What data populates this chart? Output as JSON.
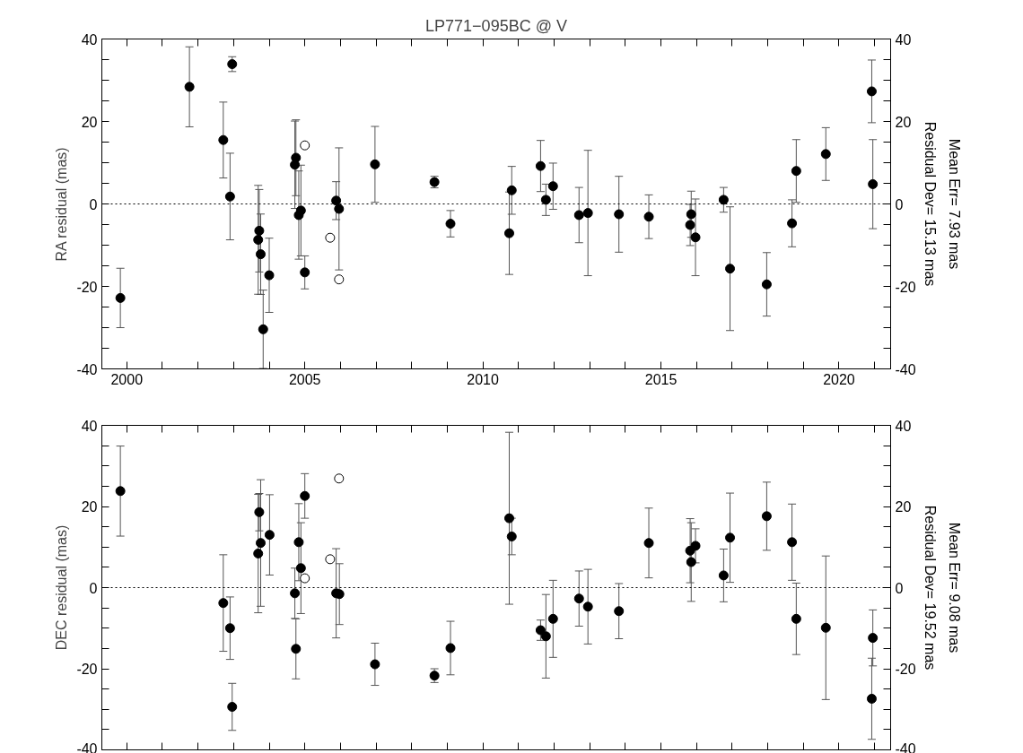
{
  "chart_data": [
    {
      "type": "scatter",
      "title": "LP771−095BC @ V",
      "ylabel": "RA residual (mas)",
      "annotations": [
        "Residual Dev= 15.13 mas",
        "Mean Err= 7.93 mas"
      ],
      "xlim": [
        1999.3,
        2021.45
      ],
      "ylim": [
        -40,
        40
      ],
      "y2lim": [
        -40,
        40
      ],
      "xticks": [
        2000,
        {
          "value": 2001,
          "label": null
        },
        {
          "value": 2002,
          "label": null
        },
        {
          "value": 2003,
          "label": null
        },
        {
          "value": 2004,
          "label": null
        },
        2005,
        {
          "value": 2006,
          "label": null
        },
        {
          "value": 2007,
          "label": null
        },
        {
          "value": 2008,
          "label": null
        },
        {
          "value": 2009,
          "label": null
        },
        2010,
        {
          "value": 2011,
          "label": null
        },
        {
          "value": 2012,
          "label": null
        },
        {
          "value": 2013,
          "label": null
        },
        {
          "value": 2014,
          "label": null
        },
        2015,
        {
          "value": 2016,
          "label": null
        },
        {
          "value": 2017,
          "label": null
        },
        {
          "value": 2018,
          "label": null
        },
        {
          "value": 2019,
          "label": null
        },
        2020,
        {
          "value": 2021,
          "label": null
        }
      ],
      "yticks": [
        -40,
        {
          "value": -35,
          "label": null
        },
        {
          "value": -30,
          "label": null
        },
        {
          "value": -25,
          "label": null
        },
        -20,
        {
          "value": -15,
          "label": null
        },
        {
          "value": -10,
          "label": null
        },
        {
          "value": -5,
          "label": null
        },
        0,
        {
          "value": 5,
          "label": null
        },
        {
          "value": 10,
          "label": null
        },
        {
          "value": 15,
          "label": null
        },
        20,
        {
          "value": 25,
          "label": null
        },
        {
          "value": 30,
          "label": null
        },
        {
          "value": 35,
          "label": null
        },
        40
      ],
      "y2ticks": [
        -40,
        {
          "value": -35,
          "label": null
        },
        {
          "value": -30,
          "label": null
        },
        {
          "value": -25,
          "label": null
        },
        -20,
        {
          "value": -15,
          "label": null
        },
        {
          "value": -10,
          "label": null
        },
        {
          "value": -5,
          "label": null
        },
        0,
        {
          "value": 5,
          "label": null
        },
        {
          "value": 10,
          "label": null
        },
        {
          "value": 15,
          "label": null
        },
        20,
        {
          "value": 25,
          "label": null
        },
        {
          "value": 30,
          "label": null
        },
        {
          "value": 35,
          "label": null
        },
        40
      ],
      "ref_lines": [
        {
          "axis": "y",
          "value": 0,
          "line_style": "dotted"
        }
      ],
      "marker": "circle",
      "series": [
        {
          "color": "#000000",
          "x": [
            1999.82,
            2001.76,
            2002.96,
            2002.71,
            2002.9,
            2003.72,
            2003.69,
            2003.76,
            2003.83,
            2004.0,
            2004.75,
            2004.72,
            2004.89,
            2004.83,
            2005.0,
            2005.88,
            2005.96,
            2006.97,
            2008.64,
            2009.09,
            2010.81,
            2010.74,
            2011.62,
            2011.77,
            2011.97,
            2012.7,
            2012.95,
            2013.82,
            2014.66,
            2015.85,
            2015.82,
            2015.97,
            2016.76,
            2016.94,
            2017.97,
            2018.68,
            2018.8,
            2019.63,
            2020.92,
            2020.95
          ],
          "values": [
            -22.8,
            28.4,
            33.9,
            15.5,
            1.8,
            -6.5,
            -8.7,
            -12.2,
            -30.4,
            -17.3,
            11.2,
            9.5,
            -1.6,
            -2.7,
            -16.6,
            0.8,
            -1.2,
            9.6,
            5.3,
            -4.8,
            3.3,
            -7.1,
            9.2,
            1.0,
            4.3,
            -2.7,
            -2.2,
            -2.5,
            -3.1,
            -2.5,
            -5.1,
            -8.1,
            1.0,
            -15.7,
            -19.5,
            -4.7,
            8.0,
            12.1,
            27.3,
            4.8
          ],
          "errors": [
            7.2,
            9.7,
            1.8,
            9.2,
            10.5,
            10,
            13.2,
            9.75,
            9.5,
            9,
            9.2,
            10.6,
            11,
            10.7,
            4,
            4.6,
            14.8,
            9.2,
            1.4,
            3.2,
            5.8,
            10,
            6.2,
            3.8,
            5.6,
            6.7,
            15.2,
            9.2,
            5.3,
            5.6,
            5,
            9.3,
            3,
            15,
            7.7,
            5.7,
            7.6,
            6.4,
            7.6,
            10.8
          ]
        },
        {
          "color": "#ffffff",
          "x": [
            2005.0,
            2005.71,
            2005.96
          ],
          "values": [
            14.2,
            -8.2,
            -18.3
          ]
        }
      ]
    },
    {
      "type": "scatter",
      "ylabel": "DEC residual (mas)",
      "annotations": [
        "Residual Dev= 19.52 mas",
        "Mean Err= 9.08 mas"
      ],
      "xlim": [
        1999.3,
        2021.45
      ],
      "ylim": [
        -40,
        40
      ],
      "y2lim": [
        -40,
        40
      ],
      "tick_labels": "y",
      "xticks": [
        {
          "value": 2000,
          "label": null
        },
        {
          "value": 2001,
          "label": null
        },
        {
          "value": 2002,
          "label": null
        },
        {
          "value": 2003,
          "label": null
        },
        {
          "value": 2004,
          "label": null
        },
        {
          "value": 2005,
          "label": null
        },
        {
          "value": 2006,
          "label": null
        },
        {
          "value": 2007,
          "label": null
        },
        {
          "value": 2008,
          "label": null
        },
        {
          "value": 2009,
          "label": null
        },
        {
          "value": 2010,
          "label": null
        },
        {
          "value": 2011,
          "label": null
        },
        {
          "value": 2012,
          "label": null
        },
        {
          "value": 2013,
          "label": null
        },
        {
          "value": 2014,
          "label": null
        },
        {
          "value": 2015,
          "label": null
        },
        {
          "value": 2016,
          "label": null
        },
        {
          "value": 2017,
          "label": null
        },
        {
          "value": 2018,
          "label": null
        },
        {
          "value": 2019,
          "label": null
        },
        {
          "value": 2020,
          "label": null
        },
        {
          "value": 2021,
          "label": null
        }
      ],
      "yticks": [
        -40,
        {
          "value": -35,
          "label": null
        },
        {
          "value": -30,
          "label": null
        },
        {
          "value": -25,
          "label": null
        },
        -20,
        {
          "value": -15,
          "label": null
        },
        {
          "value": -10,
          "label": null
        },
        {
          "value": -5,
          "label": null
        },
        0,
        {
          "value": 5,
          "label": null
        },
        {
          "value": 10,
          "label": null
        },
        {
          "value": 15,
          "label": null
        },
        20,
        {
          "value": 25,
          "label": null
        },
        {
          "value": 30,
          "label": null
        },
        {
          "value": 35,
          "label": null
        },
        40
      ],
      "y2ticks": [
        -40,
        {
          "value": -35,
          "label": null
        },
        {
          "value": -30,
          "label": null
        },
        {
          "value": -25,
          "label": null
        },
        -20,
        {
          "value": -15,
          "label": null
        },
        {
          "value": -10,
          "label": null
        },
        {
          "value": -5,
          "label": null
        },
        0,
        {
          "value": 5,
          "label": null
        },
        {
          "value": 10,
          "label": null
        },
        {
          "value": 15,
          "label": null
        },
        20,
        {
          "value": 25,
          "label": null
        },
        {
          "value": 30,
          "label": null
        },
        {
          "value": 35,
          "label": null
        },
        40
      ],
      "ref_lines": [
        {
          "axis": "y",
          "value": 0,
          "line_style": "dotted"
        }
      ],
      "marker": "circle",
      "series": [
        {
          "color": "#000000",
          "x": [
            1999.82,
            2002.71,
            2002.9,
            2002.96,
            2003.72,
            2003.76,
            2003.69,
            2004.01,
            2004.83,
            2004.89,
            2004.72,
            2004.75,
            2005.0,
            2005.88,
            2005.97,
            2006.97,
            2008.64,
            2009.09,
            2010.74,
            2010.81,
            2011.62,
            2011.77,
            2011.97,
            2012.7,
            2012.95,
            2013.82,
            2014.66,
            2015.82,
            2015.97,
            2015.85,
            2016.76,
            2016.94,
            2017.97,
            2018.68,
            2018.8,
            2019.63,
            2020.95,
            2020.92
          ],
          "values": [
            23.8,
            -3.8,
            -10.0,
            -29.4,
            18.6,
            11.0,
            8.4,
            13.0,
            11.2,
            4.8,
            -1.4,
            -15.1,
            22.6,
            -1.4,
            -1.6,
            -18.9,
            -21.7,
            -14.9,
            17.1,
            12.6,
            -10.5,
            -12.0,
            -7.7,
            -2.7,
            -4.7,
            -5.8,
            11.0,
            9.1,
            10.3,
            6.3,
            3.0,
            12.3,
            17.6,
            11.2,
            -7.7,
            -9.9,
            -12.4,
            -27.4
          ],
          "errors": [
            11.1,
            11.9,
            7.7,
            5.8,
            4.6,
            15.6,
            14.6,
            9.9,
            9.5,
            11.2,
            6.2,
            7.4,
            5.5,
            11,
            7.5,
            5.2,
            1.7,
            6.6,
            21.2,
            4.5,
            2.5,
            10.3,
            9.5,
            6.8,
            9.2,
            6.8,
            8.6,
            7.9,
            4.2,
            9.7,
            6.5,
            11,
            8.4,
            9.4,
            8.8,
            17.7,
            6.9,
            10
          ]
        },
        {
          "color": "#ffffff",
          "x": [
            2005.96,
            2005.71,
            2005.0
          ],
          "values": [
            26.9,
            7.0,
            2.3
          ]
        }
      ]
    }
  ]
}
